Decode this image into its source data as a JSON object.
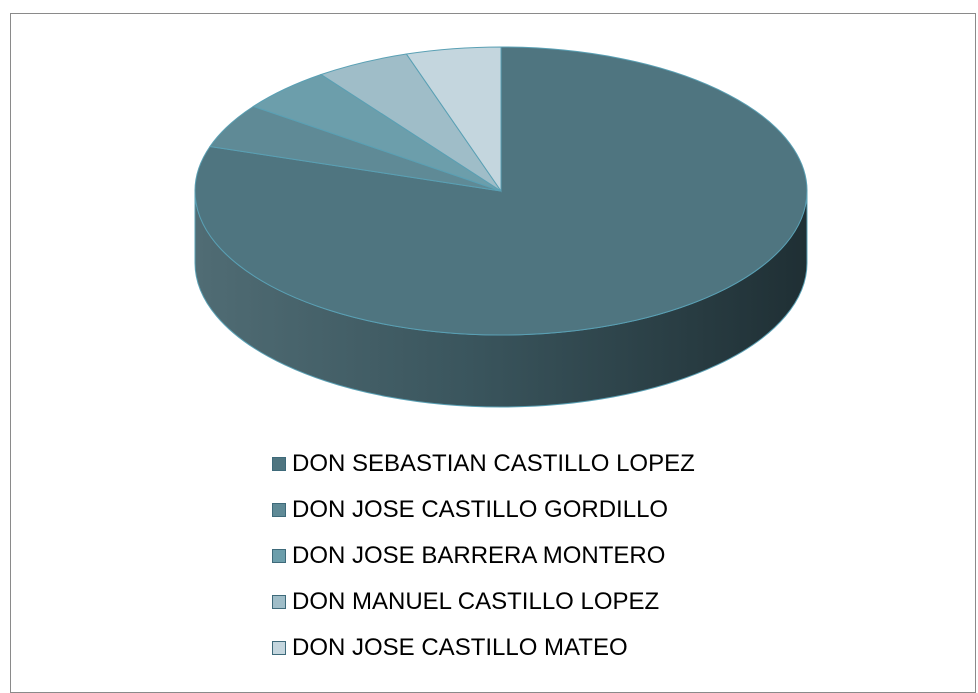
{
  "chart_data": {
    "type": "pie",
    "style": "3d",
    "legend_position": "bottom",
    "title": "",
    "categories": [
      "DON SEBASTIAN CASTILLO LOPEZ",
      "DON JOSE CASTILLO GORDILLO",
      "DON JOSE BARRERA MONTERO",
      "DON MANUEL CASTILLO LOPEZ",
      "DON JOSE CASTILLO MATEO"
    ],
    "values": [
      80,
      5,
      5,
      5,
      5
    ],
    "colors": [
      "#4f7580",
      "#5f8a96",
      "#6c9eab",
      "#9fbdc8",
      "#c4d6de"
    ],
    "side_colors": [
      "#2f4a52",
      "#3b5e68",
      "#467380",
      "#6f93a0",
      "#94b1bc"
    ]
  }
}
